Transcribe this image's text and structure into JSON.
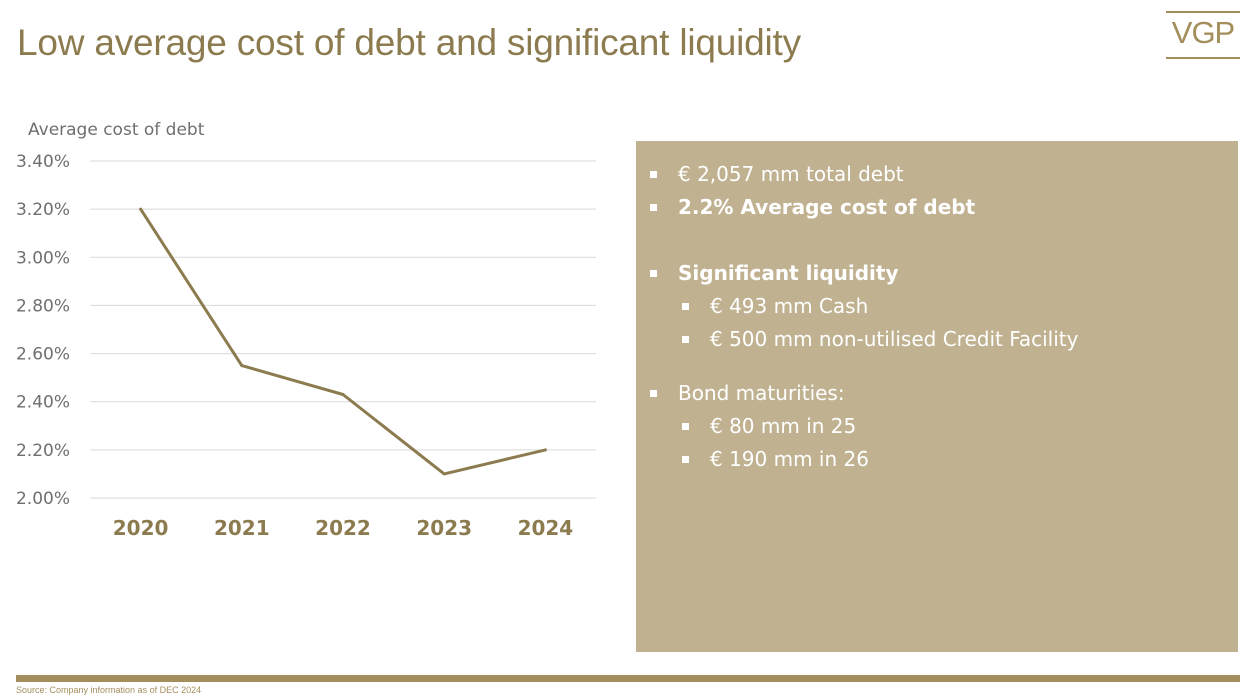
{
  "title": "Low average cost of debt and significant liquidity",
  "logo": "VGP",
  "chart_data": {
    "type": "line",
    "title": "Average cost of debt",
    "categories": [
      "2020",
      "2021",
      "2022",
      "2023",
      "2024"
    ],
    "series": [
      {
        "values": [
          3.2,
          2.55,
          2.43,
          2.1,
          2.2
        ]
      }
    ],
    "ylim": [
      2.0,
      3.4
    ],
    "yticks": [
      "3.40%",
      "3.20%",
      "3.00%",
      "2.80%",
      "2.60%",
      "2.40%",
      "2.20%",
      "2.00%"
    ],
    "ytick_values": [
      3.4,
      3.2,
      3.0,
      2.8,
      2.6,
      2.4,
      2.2,
      2.0
    ],
    "grid": true,
    "color": "#8c7b4f"
  },
  "panel": {
    "items": [
      {
        "text": "€ 2,057 mm total debt",
        "level": 1,
        "bold": false,
        "gap": ""
      },
      {
        "text": "2.2% Average cost of debt",
        "level": 1,
        "bold": true,
        "gap": ""
      },
      {
        "text": "Significant liquidity",
        "level": 1,
        "bold": true,
        "gap": "large"
      },
      {
        "text": "€ 493 mm Cash",
        "level": 2,
        "bold": false,
        "gap": ""
      },
      {
        "text": "€ 500 mm non-utilised Credit Facility",
        "level": 2,
        "bold": false,
        "gap": ""
      },
      {
        "text": "Bond maturities:",
        "level": 1,
        "bold": false,
        "gap": "medium"
      },
      {
        "text": "€ 80 mm in 25",
        "level": 2,
        "bold": false,
        "gap": ""
      },
      {
        "text": "€ 190 mm in 26",
        "level": 2,
        "bold": false,
        "gap": ""
      }
    ]
  },
  "colors": {
    "accent": "#a48f5c",
    "panel_bg": "#c0b291",
    "title": "#8c7b4f"
  },
  "source": "Source: Company information as of DEC 2024"
}
